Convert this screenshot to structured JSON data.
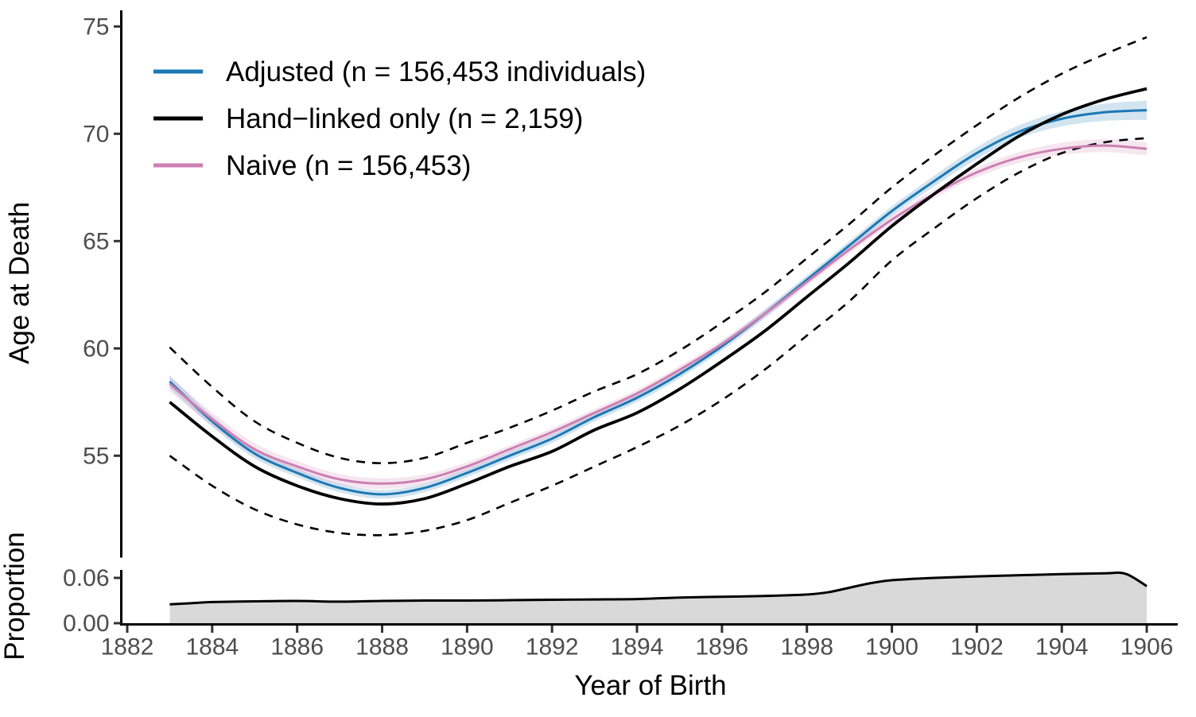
{
  "figure": {
    "background": "#FFFFFF",
    "axis_line_color": "#000000",
    "tick_color": "#333333",
    "axis_text_color": "#4D4D4D",
    "title_text_color": "#000000"
  },
  "legend": {
    "items": [
      {
        "label": "Adjusted (n = 156,453 individuals)",
        "color": "#1D78B5"
      },
      {
        "label": "Hand−linked only (n = 2,159)",
        "color": "#000000"
      },
      {
        "label": "Naive (n = 156,453)",
        "color": "#CC80B3"
      }
    ]
  },
  "chart_data": [
    {
      "type": "line",
      "panel": "main",
      "xlabel": "Year of Birth",
      "ylabel": "Age at Death",
      "xlim": [
        1881.9,
        1906.8
      ],
      "ylim": [
        50.3,
        75.8
      ],
      "grid": "off",
      "legend_position": "top-left-inside",
      "xticks": [
        1882,
        1884,
        1886,
        1888,
        1890,
        1892,
        1894,
        1896,
        1898,
        1900,
        1902,
        1904,
        1906
      ],
      "xtick_labels": [
        "1882",
        "1884",
        "1886",
        "1888",
        "1890",
        "1892",
        "1894",
        "1896",
        "1898",
        "1900",
        "1902",
        "1904",
        "1906"
      ],
      "yticks": [
        55,
        60,
        65,
        70,
        75
      ],
      "ytick_labels": [
        "55",
        "60",
        "65",
        "70",
        "75"
      ],
      "x": [
        1883,
        1884,
        1885,
        1886,
        1887,
        1888,
        1889,
        1890,
        1891,
        1892,
        1893,
        1894,
        1895,
        1896,
        1897,
        1898,
        1899,
        1900,
        1901,
        1902,
        1903,
        1904,
        1905,
        1906
      ],
      "series": [
        {
          "name": "Adjusted (n = 156,453 individuals)",
          "color": "#1D78B5",
          "band_color": "rgba(29, 120, 181, 0.20)",
          "values": [
            58.45,
            56.6,
            55.1,
            54.2,
            53.5,
            53.2,
            53.5,
            54.2,
            55.0,
            55.8,
            56.8,
            57.7,
            58.8,
            60.1,
            61.6,
            63.2,
            64.8,
            66.4,
            67.8,
            69.1,
            70.1,
            70.7,
            71.0,
            71.1
          ],
          "band_halfwidth": [
            0.3,
            0.25,
            0.22,
            0.2,
            0.2,
            0.2,
            0.2,
            0.2,
            0.2,
            0.2,
            0.2,
            0.2,
            0.2,
            0.2,
            0.2,
            0.2,
            0.2,
            0.22,
            0.25,
            0.28,
            0.3,
            0.35,
            0.4,
            0.45
          ]
        },
        {
          "name": "Hand−linked only (n = 2,159)",
          "color": "#000000",
          "ci_style": "dashed",
          "values": [
            57.5,
            55.9,
            54.5,
            53.6,
            53.0,
            52.75,
            53.0,
            53.7,
            54.5,
            55.2,
            56.2,
            57.0,
            58.1,
            59.4,
            60.8,
            62.4,
            64.0,
            65.7,
            67.2,
            68.6,
            69.9,
            70.9,
            71.6,
            72.1
          ],
          "ci_upper": [
            60.05,
            58.2,
            56.6,
            55.6,
            54.9,
            54.65,
            54.9,
            55.6,
            56.3,
            57.1,
            58.0,
            58.8,
            59.9,
            61.2,
            62.6,
            64.2,
            65.8,
            67.5,
            69.0,
            70.4,
            71.7,
            72.8,
            73.7,
            74.5
          ],
          "ci_lower": [
            55.0,
            53.6,
            52.5,
            51.8,
            51.4,
            51.3,
            51.5,
            52.0,
            52.8,
            53.6,
            54.5,
            55.4,
            56.4,
            57.6,
            59.0,
            60.6,
            62.2,
            64.1,
            65.6,
            67.0,
            68.2,
            69.1,
            69.6,
            69.8
          ]
        },
        {
          "name": "Naive (n = 156,453)",
          "color": "#CC80B3",
          "band_color": "rgba(204, 128, 179, 0.20)",
          "values": [
            58.35,
            56.7,
            55.3,
            54.5,
            53.9,
            53.7,
            53.9,
            54.5,
            55.3,
            56.1,
            57.0,
            57.9,
            59.0,
            60.2,
            61.6,
            63.1,
            64.6,
            66.0,
            67.2,
            68.2,
            68.9,
            69.3,
            69.45,
            69.3
          ],
          "band_halfwidth": [
            0.35,
            0.3,
            0.28,
            0.25,
            0.25,
            0.25,
            0.22,
            0.2,
            0.18,
            0.18,
            0.18,
            0.18,
            0.18,
            0.18,
            0.18,
            0.18,
            0.18,
            0.2,
            0.2,
            0.22,
            0.25,
            0.28,
            0.3,
            0.3
          ]
        }
      ]
    },
    {
      "type": "area",
      "panel": "bottom",
      "ylabel": "Proportion",
      "fill_color": "#D9D9D9",
      "line_color": "#000000",
      "ylim": [
        0,
        0.07
      ],
      "grid": "off",
      "yticks": [
        0,
        0.06
      ],
      "ytick_labels": [
        "0.00",
        "0.06"
      ],
      "x": [
        1883,
        1883.5,
        1884,
        1885,
        1886,
        1887,
        1888,
        1889,
        1890,
        1891,
        1892,
        1893,
        1894,
        1895,
        1896,
        1897,
        1898,
        1898.5,
        1899,
        1899.5,
        1900,
        1901,
        1902,
        1903,
        1904,
        1905,
        1905.5,
        1906
      ],
      "values": [
        0.025,
        0.0265,
        0.028,
        0.029,
        0.0295,
        0.0285,
        0.0295,
        0.03,
        0.03,
        0.0305,
        0.031,
        0.0315,
        0.032,
        0.034,
        0.035,
        0.036,
        0.038,
        0.041,
        0.047,
        0.053,
        0.057,
        0.06,
        0.062,
        0.0635,
        0.065,
        0.066,
        0.0655,
        0.049
      ]
    }
  ]
}
